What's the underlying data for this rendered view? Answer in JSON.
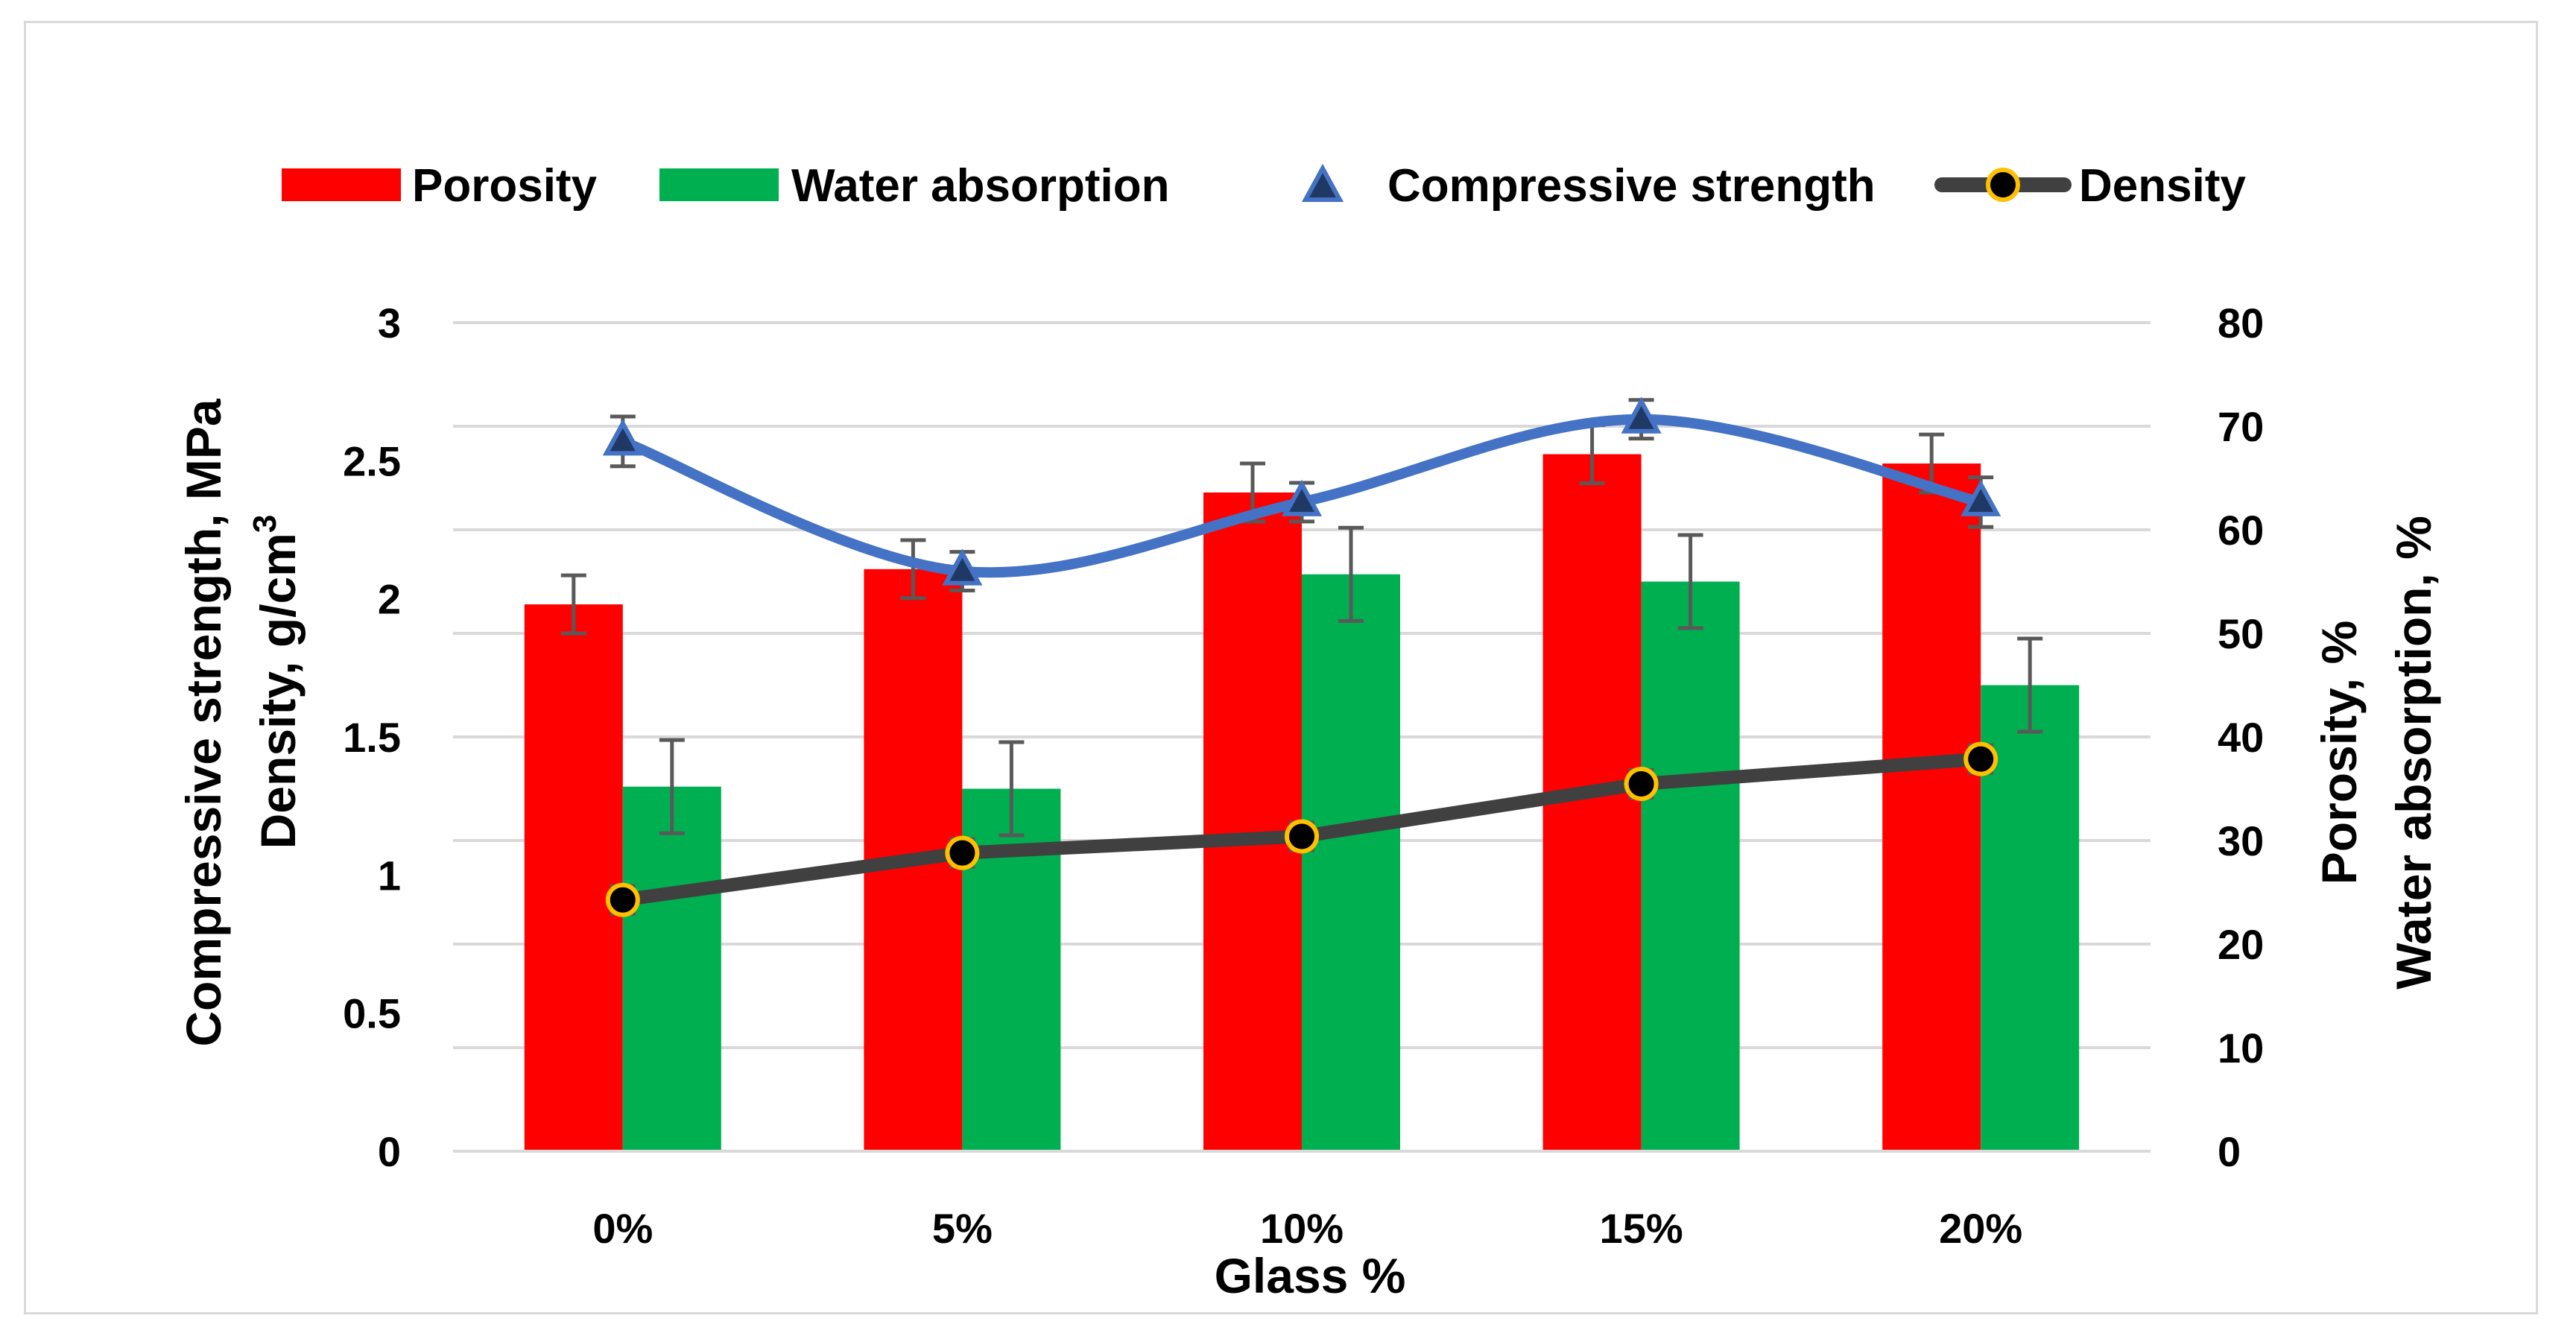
{
  "chart_data": {
    "type": "bar",
    "categories": [
      "0%",
      "5%",
      "10%",
      "15%",
      "20%"
    ],
    "xlabel": "Glass %",
    "ylabel_left_lines": [
      "Compressive strength, MPa",
      "Density, g/cm"
    ],
    "ylabel_left_superscript": "3",
    "ylabel_right_lines": [
      "Porosity, %",
      "Water absorption, %"
    ],
    "y_left": {
      "min": 0,
      "max": 3,
      "ticks": [
        0,
        0.5,
        1,
        1.5,
        2,
        2.5,
        3
      ],
      "tick_labels": [
        "0",
        "0.5",
        "1",
        "1.5",
        "2",
        "2.5",
        "3"
      ]
    },
    "y_right": {
      "min": 0,
      "max": 80,
      "ticks": [
        0,
        10,
        20,
        30,
        40,
        50,
        60,
        70,
        80
      ],
      "tick_labels": [
        "0",
        "10",
        "20",
        "30",
        "40",
        "50",
        "60",
        "70",
        "80"
      ]
    },
    "grid": true,
    "legend_position": "top",
    "series": [
      {
        "name": "Porosity",
        "type": "bar",
        "axis": "right",
        "color": "#ff0000",
        "values": [
          52.8,
          56.2,
          63.6,
          67.3,
          66.4
        ],
        "errors": [
          2.8,
          2.8,
          2.8,
          2.8,
          2.8
        ]
      },
      {
        "name": "Water absorption",
        "type": "bar",
        "axis": "right",
        "color": "#00b050",
        "values": [
          35.2,
          35.0,
          55.7,
          55.0,
          45.0
        ],
        "errors": [
          4.5,
          4.5,
          4.5,
          4.5,
          4.5
        ]
      },
      {
        "name": "Compressive strength",
        "type": "line",
        "axis": "left",
        "color": "#4472c4",
        "marker": "triangle",
        "smooth": true,
        "values": [
          2.57,
          2.1,
          2.35,
          2.65,
          2.35
        ],
        "errors": [
          0.09,
          0.07,
          0.07,
          0.07,
          0.09
        ]
      },
      {
        "name": "Density",
        "type": "line",
        "axis": "left",
        "color": "#404040",
        "marker": "circle",
        "marker_fill": "#000000",
        "marker_edge": "#ffc000",
        "values": [
          0.91,
          1.08,
          1.14,
          1.33,
          1.42
        ],
        "errors": [
          0.05,
          0.05,
          0.05,
          0.05,
          0.05
        ]
      }
    ]
  }
}
